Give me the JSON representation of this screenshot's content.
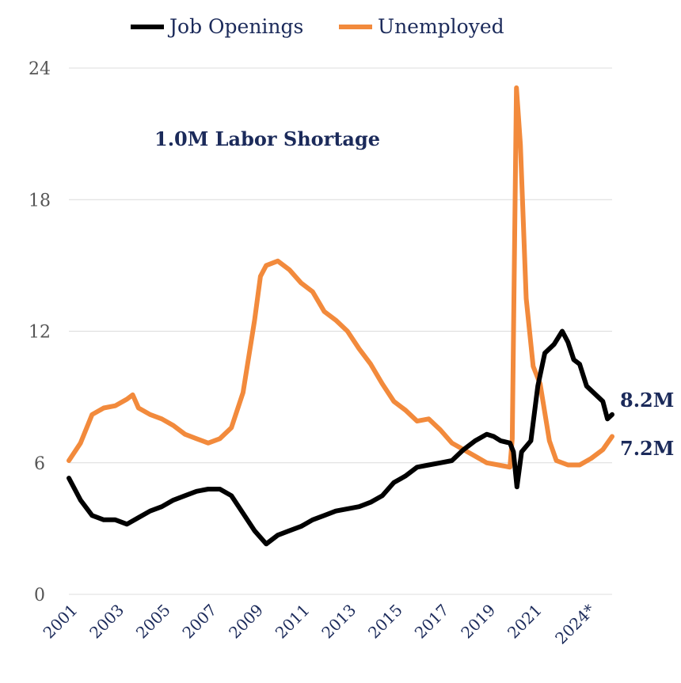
{
  "chart_data": {
    "type": "line",
    "title": "",
    "xlabel": "",
    "ylabel": "",
    "ylim": [
      0,
      24
    ],
    "xlim": [
      2001.0,
      2024.4
    ],
    "y_ticks": [
      "0",
      "6",
      "12",
      "18",
      "24"
    ],
    "x_ticks": [
      {
        "label": "2001",
        "x": 2001
      },
      {
        "label": "2003",
        "x": 2003
      },
      {
        "label": "2005",
        "x": 2005
      },
      {
        "label": "2007",
        "x": 2007
      },
      {
        "label": "2009",
        "x": 2009
      },
      {
        "label": "2011",
        "x": 2011
      },
      {
        "label": "2013",
        "x": 2013
      },
      {
        "label": "2015",
        "x": 2015
      },
      {
        "label": "2017",
        "x": 2017
      },
      {
        "label": "2019",
        "x": 2019
      },
      {
        "label": "2021",
        "x": 2021
      },
      {
        "label": "2024*",
        "x": 2023.3
      }
    ],
    "grid": "horizontal",
    "legend_position": "top",
    "annotation": "1.0M Labor Shortage",
    "series": [
      {
        "name": "Job Openings",
        "color": "#000000",
        "end_label": "8.2M",
        "points": [
          [
            2001.0,
            5.3
          ],
          [
            2001.5,
            4.3
          ],
          [
            2002.0,
            3.6
          ],
          [
            2002.5,
            3.4
          ],
          [
            2003.0,
            3.4
          ],
          [
            2003.5,
            3.2
          ],
          [
            2004.0,
            3.5
          ],
          [
            2004.5,
            3.8
          ],
          [
            2005.0,
            4.0
          ],
          [
            2005.5,
            4.3
          ],
          [
            2006.0,
            4.5
          ],
          [
            2006.5,
            4.7
          ],
          [
            2007.0,
            4.8
          ],
          [
            2007.5,
            4.8
          ],
          [
            2008.0,
            4.5
          ],
          [
            2008.5,
            3.7
          ],
          [
            2009.0,
            2.9
          ],
          [
            2009.5,
            2.3
          ],
          [
            2010.0,
            2.7
          ],
          [
            2010.5,
            2.9
          ],
          [
            2011.0,
            3.1
          ],
          [
            2011.5,
            3.4
          ],
          [
            2012.0,
            3.6
          ],
          [
            2012.5,
            3.8
          ],
          [
            2013.0,
            3.9
          ],
          [
            2013.5,
            4.0
          ],
          [
            2014.0,
            4.2
          ],
          [
            2014.5,
            4.5
          ],
          [
            2015.0,
            5.1
          ],
          [
            2015.5,
            5.4
          ],
          [
            2016.0,
            5.8
          ],
          [
            2016.5,
            5.9
          ],
          [
            2017.0,
            6.0
          ],
          [
            2017.5,
            6.1
          ],
          [
            2018.0,
            6.6
          ],
          [
            2018.5,
            7.0
          ],
          [
            2019.0,
            7.3
          ],
          [
            2019.3,
            7.2
          ],
          [
            2019.6,
            7.0
          ],
          [
            2020.0,
            6.9
          ],
          [
            2020.15,
            6.5
          ],
          [
            2020.3,
            4.9
          ],
          [
            2020.5,
            6.5
          ],
          [
            2020.9,
            7.0
          ],
          [
            2021.2,
            9.5
          ],
          [
            2021.5,
            11.0
          ],
          [
            2021.9,
            11.4
          ],
          [
            2022.25,
            12.0
          ],
          [
            2022.5,
            11.5
          ],
          [
            2022.75,
            10.7
          ],
          [
            2023.0,
            10.5
          ],
          [
            2023.3,
            9.5
          ],
          [
            2023.6,
            9.2
          ],
          [
            2024.0,
            8.8
          ],
          [
            2024.2,
            8.0
          ],
          [
            2024.4,
            8.2
          ]
        ]
      },
      {
        "name": "Unemployed",
        "color": "#f28a3c",
        "end_label": "7.2M",
        "points": [
          [
            2001.0,
            6.1
          ],
          [
            2001.5,
            6.9
          ],
          [
            2002.0,
            8.2
          ],
          [
            2002.5,
            8.5
          ],
          [
            2003.0,
            8.6
          ],
          [
            2003.5,
            8.9
          ],
          [
            2003.75,
            9.1
          ],
          [
            2004.0,
            8.5
          ],
          [
            2004.5,
            8.2
          ],
          [
            2005.0,
            8.0
          ],
          [
            2005.5,
            7.7
          ],
          [
            2006.0,
            7.3
          ],
          [
            2006.5,
            7.1
          ],
          [
            2007.0,
            6.9
          ],
          [
            2007.5,
            7.1
          ],
          [
            2008.0,
            7.6
          ],
          [
            2008.5,
            9.2
          ],
          [
            2009.0,
            12.5
          ],
          [
            2009.25,
            14.5
          ],
          [
            2009.5,
            15.0
          ],
          [
            2010.0,
            15.2
          ],
          [
            2010.5,
            14.8
          ],
          [
            2011.0,
            14.2
          ],
          [
            2011.5,
            13.8
          ],
          [
            2012.0,
            12.9
          ],
          [
            2012.5,
            12.5
          ],
          [
            2013.0,
            12.0
          ],
          [
            2013.5,
            11.2
          ],
          [
            2014.0,
            10.5
          ],
          [
            2014.5,
            9.6
          ],
          [
            2015.0,
            8.8
          ],
          [
            2015.5,
            8.4
          ],
          [
            2016.0,
            7.9
          ],
          [
            2016.5,
            8.0
          ],
          [
            2017.0,
            7.5
          ],
          [
            2017.5,
            6.9
          ],
          [
            2018.0,
            6.6
          ],
          [
            2018.5,
            6.3
          ],
          [
            2019.0,
            6.0
          ],
          [
            2019.5,
            5.9
          ],
          [
            2020.0,
            5.8
          ],
          [
            2020.1,
            7.1
          ],
          [
            2020.28,
            23.1
          ],
          [
            2020.45,
            20.5
          ],
          [
            2020.7,
            13.5
          ],
          [
            2021.0,
            10.4
          ],
          [
            2021.3,
            9.6
          ],
          [
            2021.7,
            7.0
          ],
          [
            2022.0,
            6.1
          ],
          [
            2022.5,
            5.9
          ],
          [
            2023.0,
            5.9
          ],
          [
            2023.5,
            6.2
          ],
          [
            2024.0,
            6.6
          ],
          [
            2024.4,
            7.2
          ]
        ]
      }
    ]
  }
}
